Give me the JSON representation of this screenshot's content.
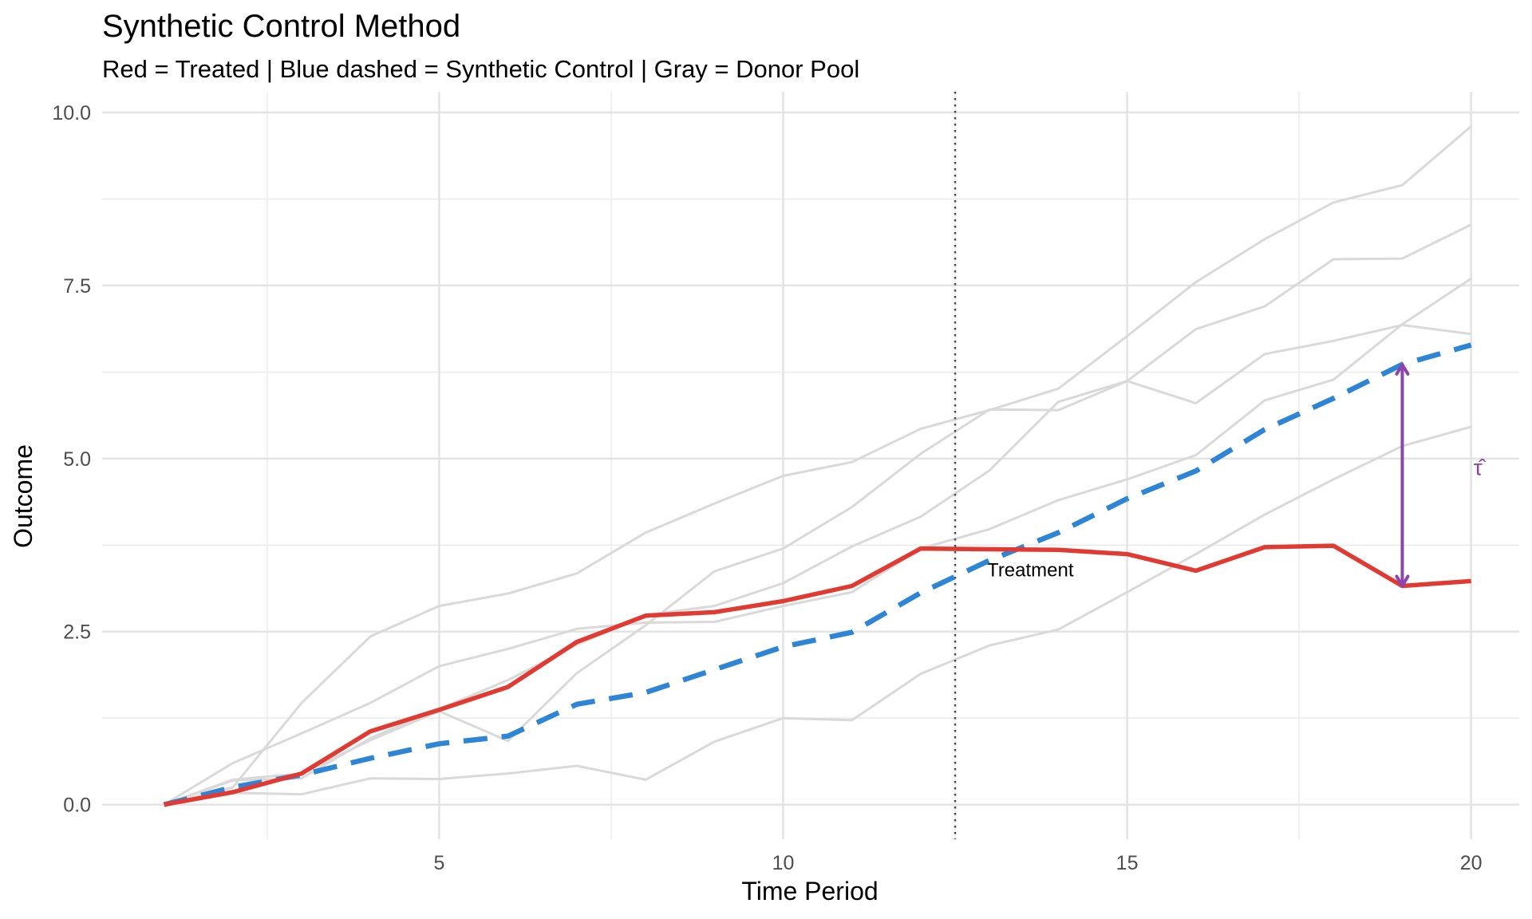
{
  "chart_data": {
    "type": "line",
    "title": "Synthetic Control Method",
    "subtitle": "Red = Treated | Blue dashed = Synthetic Control | Gray = Donor Pool",
    "xlabel": "Time Period",
    "ylabel": "Outcome",
    "xlim": [
      0.1,
      20.7
    ],
    "ylim": [
      -0.5,
      10.3
    ],
    "x_ticks": [
      5,
      10,
      15,
      20
    ],
    "x_tick_labels": [
      "5",
      "10",
      "15",
      "20"
    ],
    "y_ticks": [
      0,
      2.5,
      5,
      7.5,
      10
    ],
    "y_tick_labels": [
      "0.0",
      "2.5",
      "5.0",
      "7.5",
      "10.0"
    ],
    "grid": true,
    "legend": "none",
    "x": [
      1,
      2,
      3,
      4,
      5,
      6,
      7,
      8,
      9,
      10,
      11,
      12,
      13,
      14,
      15,
      16,
      17,
      18,
      19,
      20
    ],
    "treated": {
      "color": "#e03a32",
      "values": [
        0.0,
        0.18,
        0.45,
        1.06,
        1.37,
        1.7,
        2.35,
        2.73,
        2.78,
        2.94,
        3.16,
        3.7,
        3.69,
        3.68,
        3.62,
        3.38,
        3.72,
        3.74,
        3.16,
        3.23
      ]
    },
    "synthetic": {
      "color": "#2e85d6",
      "values": [
        0.0,
        0.25,
        0.43,
        0.67,
        0.88,
        0.99,
        1.45,
        1.62,
        1.95,
        2.28,
        2.49,
        3.06,
        3.53,
        3.93,
        4.42,
        4.82,
        5.42,
        5.87,
        6.36,
        6.64
      ]
    },
    "donors": {
      "color": "#d9d9d9",
      "series": [
        {
          "values": [
            0.0,
            0.6,
            1.03,
            1.47,
            2.0,
            2.25,
            2.54,
            2.63,
            2.64,
            2.87,
            3.07,
            3.7,
            3.98,
            4.4,
            4.7,
            5.05,
            5.84,
            6.14,
            6.94,
            7.6
          ]
        },
        {
          "values": [
            0.0,
            0.25,
            1.47,
            2.43,
            2.87,
            3.05,
            3.34,
            3.93,
            4.35,
            4.75,
            4.95,
            5.43,
            5.7,
            6.01,
            6.77,
            7.55,
            8.17,
            8.7,
            8.95,
            9.8
          ]
        },
        {
          "values": [
            0.0,
            0.17,
            0.15,
            0.38,
            0.37,
            0.45,
            0.56,
            0.36,
            0.91,
            1.25,
            1.22,
            1.89,
            2.3,
            2.53,
            3.07,
            3.62,
            4.19,
            4.7,
            5.18,
            5.46
          ]
        },
        {
          "values": [
            0.0,
            0.35,
            0.38,
            0.96,
            1.38,
            1.8,
            2.31,
            2.74,
            2.87,
            3.2,
            3.73,
            4.16,
            4.83,
            5.82,
            6.12,
            6.87,
            7.2,
            7.88,
            7.89,
            8.38
          ]
        },
        {
          "values": [
            0.0,
            0.36,
            0.45,
            0.93,
            1.35,
            0.92,
            1.9,
            2.59,
            3.37,
            3.7,
            4.3,
            5.07,
            5.71,
            5.7,
            6.12,
            5.8,
            6.51,
            6.7,
            6.93,
            6.8
          ]
        }
      ]
    },
    "treatment_line": {
      "x": 12.5,
      "label": "Treatment",
      "color": "#4d4d4d"
    },
    "effect_arrow": {
      "x": 19,
      "from": 3.16,
      "to": 6.36,
      "label": "τ̂",
      "color": "#8e44ad"
    }
  }
}
